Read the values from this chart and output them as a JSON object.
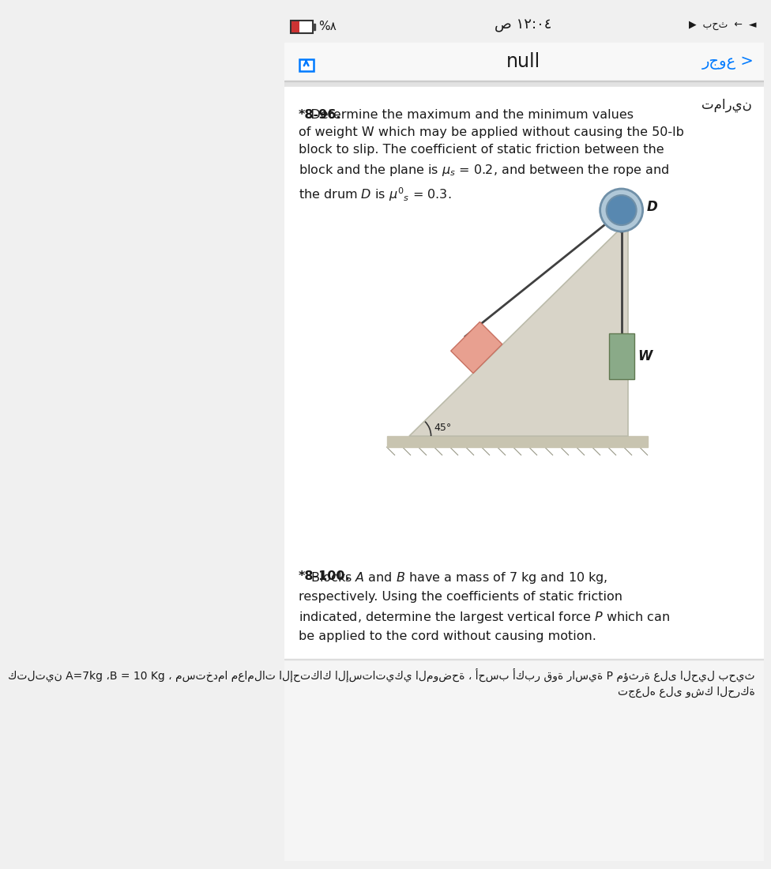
{
  "bg_color": "#f0f0f0",
  "white": "#ffffff",
  "nav_bar_bg": "#f8f8f8",
  "blue_text": "#007AFF",
  "dark_text": "#1a1a1a",
  "separator_color": "#cccccc",
  "time_text": "ص ١٢:٠٤",
  "battery_pct": "%۸",
  "null_title": "null",
  "back_text": "رجوع >",
  "tamarin_text": "تمارين",
  "problem_8_96_label": "*8-96.",
  "problem_8_96_body": "Determine the maximum and the minimum values\nof weight W which may be applied without causing the 50-lb\nblock to slip. The coefficient of static friction between the\nblock and the plane is us = 0.2, and between the rope and\nthe drum D is u's = 0.3.",
  "problem_8_100_label": "*8-100.",
  "problem_8_100_body": "Blocks A and B have a mass of 7 kg and 10 kg,\nrespectively. Using the coefficients of static friction\nindicated, determine the largest vertical force P which can\nbe applied to the cord without causing motion.",
  "arabic_line1": "كتلتين A=7kg ،B = 10 Kg ، مستخدما معاملات الإحتكاك الإستاتيكي الموضحة ، أحسب أكبر قوة راسية P مؤثرة على الحيل بحيث",
  "arabic_line2": "تجعله على وشك الحركة",
  "wedge_color": "#d8d4c8",
  "wedge_edge": "#bbbbaa",
  "block_color": "#e8a090",
  "block_edge": "#c87060",
  "weight_color": "#8aaa88",
  "weight_edge": "#607850",
  "drum_outer_color": "#b0c8d8",
  "drum_inner_color": "#5888b0",
  "drum_edge_color": "#7090a8",
  "rope_color": "#404040",
  "ground_color": "#c8c4b0",
  "angle_color": "#333333"
}
